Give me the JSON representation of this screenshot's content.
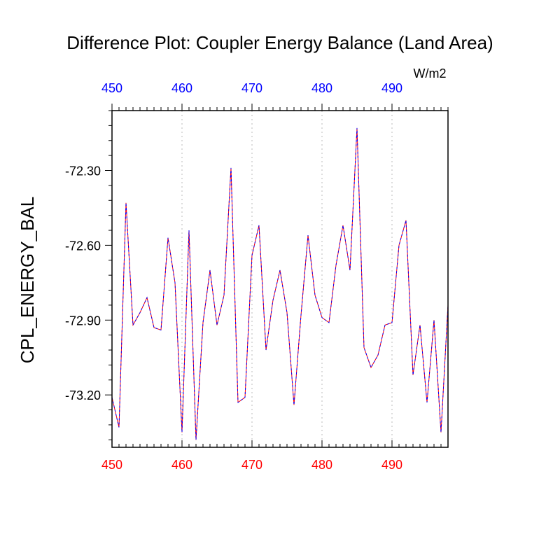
{
  "title": "Difference Plot: Coupler Energy Balance (Land Area)",
  "units_label": "W/m2",
  "chart_data": {
    "type": "line",
    "title": "Difference Plot: Coupler Energy Balance (Land Area)",
    "ylabel": "CPL_ENERGY_BAL",
    "units": "W/m2",
    "xlim": [
      450,
      498
    ],
    "ylim": [
      -73.41,
      -72.06
    ],
    "x_ticks_bottom": [
      450,
      460,
      470,
      480,
      490
    ],
    "x_ticks_top": [
      450,
      460,
      470,
      480,
      490
    ],
    "y_ticks": [
      -72.3,
      -72.6,
      -72.9,
      -73.2
    ],
    "y_tick_labels": [
      "-72.30",
      "-72.60",
      "-72.90",
      "-73.20"
    ],
    "grid": "vertical dotted at major x ticks",
    "colors": {
      "bottom_axis": "#ff0000",
      "top_axis": "#0000ff",
      "line_a": "#ff0000",
      "line_b": "#0000ff"
    },
    "series": [
      {
        "x": [
          450,
          451,
          452,
          453,
          454,
          455,
          456,
          457,
          458,
          459,
          460,
          461,
          462,
          463,
          464,
          465,
          466,
          467,
          468,
          469,
          470,
          471,
          472,
          473,
          474,
          475,
          476,
          477,
          478,
          479,
          480,
          481,
          482,
          483,
          484,
          485,
          486,
          487,
          488,
          489,
          490,
          491,
          492,
          493,
          494,
          495,
          496,
          497,
          498
        ],
        "values": [
          -73.21,
          -73.33,
          -72.43,
          -72.92,
          -72.87,
          -72.81,
          -72.93,
          -72.94,
          -72.57,
          -72.75,
          -73.35,
          -72.54,
          -73.38,
          -72.91,
          -72.7,
          -72.92,
          -72.8,
          -72.29,
          -73.23,
          -73.21,
          -72.64,
          -72.52,
          -73.02,
          -72.82,
          -72.7,
          -72.87,
          -73.24,
          -72.88,
          -72.56,
          -72.8,
          -72.89,
          -72.91,
          -72.68,
          -72.52,
          -72.7,
          -72.13,
          -73.01,
          -73.09,
          -73.04,
          -72.92,
          -72.91,
          -72.6,
          -72.5,
          -73.12,
          -72.92,
          -73.23,
          -72.9,
          -73.35,
          -72.84
        ]
      },
      {
        "x": [
          450,
          451,
          452,
          453,
          454,
          455,
          456,
          457,
          458,
          459,
          460,
          461,
          462,
          463,
          464,
          465,
          466,
          467,
          468,
          469,
          470,
          471,
          472,
          473,
          474,
          475,
          476,
          477,
          478,
          479,
          480,
          481,
          482,
          483,
          484,
          485,
          486,
          487,
          488,
          489,
          490,
          491,
          492,
          493,
          494,
          495,
          496,
          497,
          498
        ],
        "values": [
          -73.21,
          -73.33,
          -72.43,
          -72.92,
          -72.87,
          -72.81,
          -72.93,
          -72.94,
          -72.57,
          -72.75,
          -73.35,
          -72.54,
          -73.38,
          -72.91,
          -72.7,
          -72.92,
          -72.8,
          -72.29,
          -73.23,
          -73.21,
          -72.64,
          -72.52,
          -73.02,
          -72.82,
          -72.7,
          -72.87,
          -73.24,
          -72.88,
          -72.56,
          -72.8,
          -72.89,
          -72.91,
          -72.68,
          -72.52,
          -72.7,
          -72.13,
          -73.01,
          -73.09,
          -73.04,
          -72.92,
          -72.91,
          -72.6,
          -72.5,
          -73.12,
          -72.92,
          -73.23,
          -72.9,
          -73.35,
          -72.84
        ]
      }
    ]
  }
}
